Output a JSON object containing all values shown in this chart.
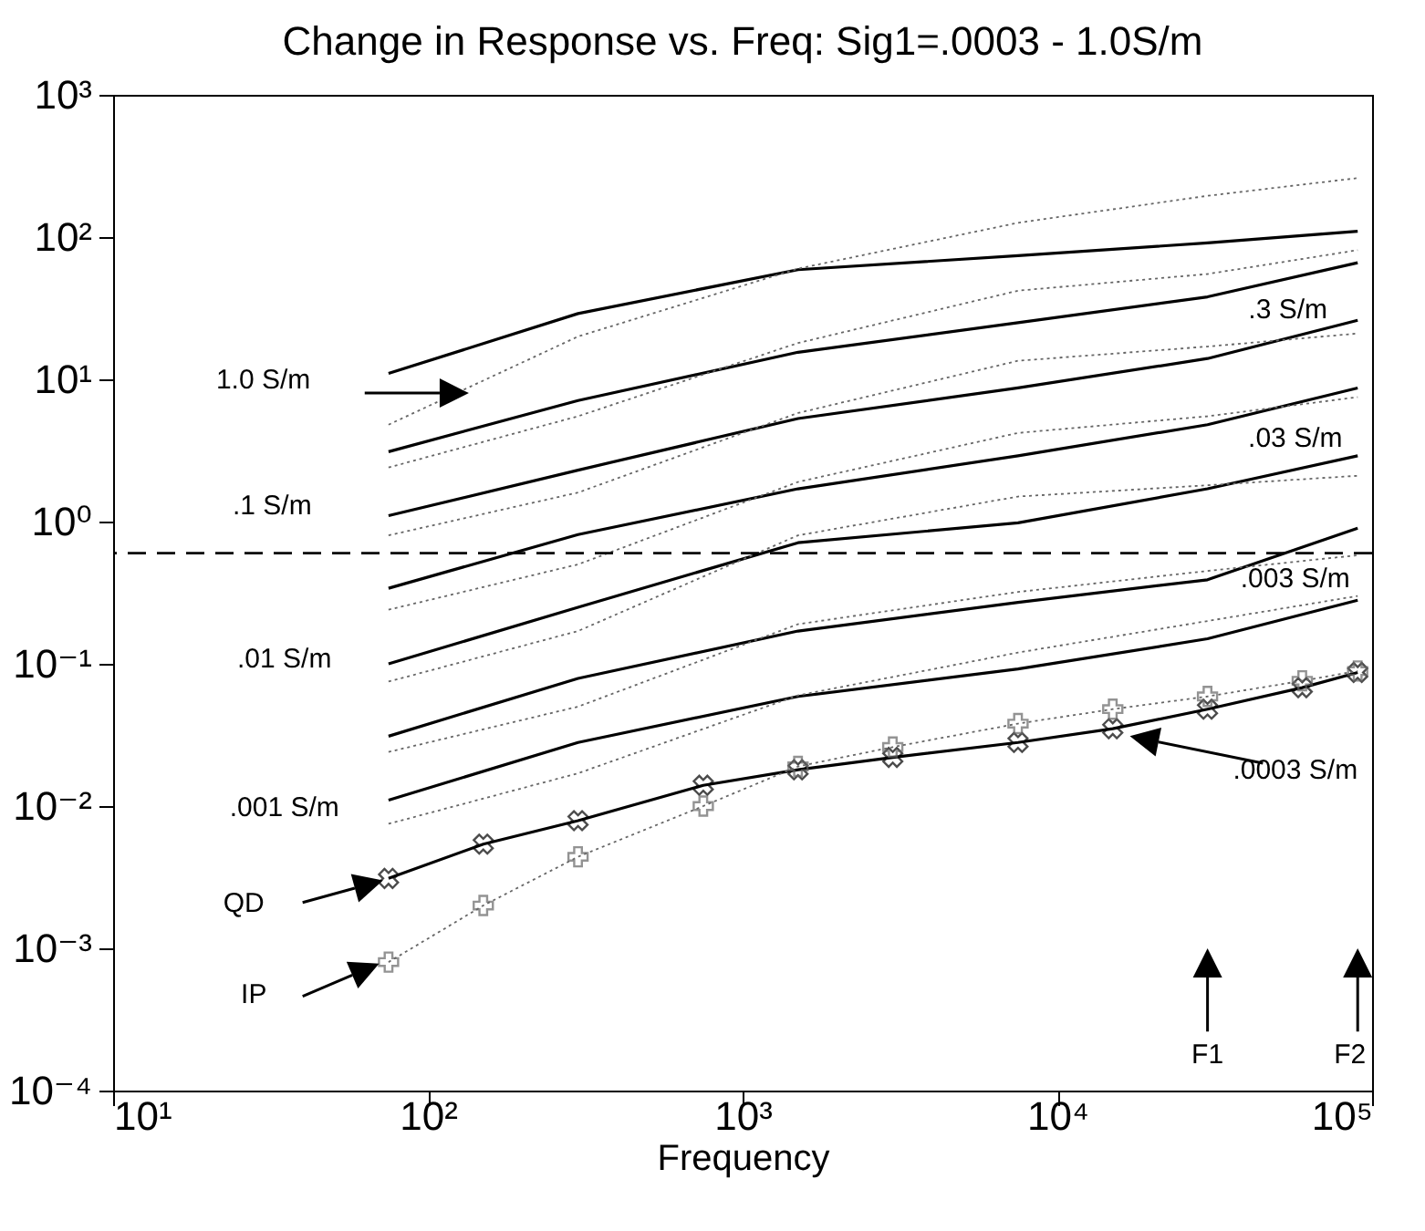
{
  "chart_data": {
    "type": "line",
    "title": "Change in Response vs. Freq: Sig1=.0003 - 1.0S/m",
    "xlabel": "Frequency",
    "log": "xy",
    "grid": false,
    "xlim": [
      10,
      100000
    ],
    "xticks": [
      {
        "value": 10,
        "label": "10¹"
      },
      {
        "value": 100,
        "label": "10²"
      },
      {
        "value": 1000,
        "label": "10³"
      },
      {
        "value": 10000,
        "label": "10⁴"
      },
      {
        "value": 100000,
        "label": "10⁵"
      }
    ],
    "ylim": [
      0.0001,
      1000
    ],
    "yticks": [
      {
        "value": 0.0001,
        "label": "10⁻⁴"
      },
      {
        "value": 0.001,
        "label": "10⁻³"
      },
      {
        "value": 0.01,
        "label": "10⁻²"
      },
      {
        "value": 0.1,
        "label": "10⁻¹"
      },
      {
        "value": 1,
        "label": "10⁰"
      },
      {
        "value": 10,
        "label": "10¹"
      },
      {
        "value": 100,
        "label": "10²"
      },
      {
        "value": 1000,
        "label": "10³"
      }
    ],
    "series": [
      {
        "color": "#000000",
        "line_style": "solid",
        "x": [
          75,
          300,
          1500,
          7500,
          30000,
          90000
        ],
        "values": [
          11,
          29,
          59,
          74,
          91,
          110
        ]
      },
      {
        "color": "#000000",
        "line_style": "solid",
        "x": [
          75,
          300,
          1500,
          7500,
          30000,
          90000
        ],
        "values": [
          3.1,
          7.1,
          15.5,
          25,
          38,
          66
        ]
      },
      {
        "color": "#000000",
        "line_style": "solid",
        "x": [
          75,
          300,
          1500,
          7500,
          30000,
          90000
        ],
        "values": [
          1.1,
          2.3,
          5.3,
          8.7,
          14,
          26
        ]
      },
      {
        "color": "#000000",
        "line_style": "solid",
        "x": [
          75,
          300,
          1500,
          7500,
          30000,
          90000
        ],
        "values": [
          0.34,
          0.81,
          1.7,
          2.9,
          4.8,
          8.7
        ]
      },
      {
        "color": "#000000",
        "line_style": "solid",
        "x": [
          75,
          300,
          1500,
          7500,
          30000,
          90000
        ],
        "values": [
          0.1,
          0.25,
          0.71,
          0.98,
          1.7,
          2.9
        ]
      },
      {
        "color": "#000000",
        "line_style": "solid",
        "x": [
          75,
          300,
          1500,
          7500,
          30000,
          90000
        ],
        "values": [
          0.031,
          0.079,
          0.17,
          0.27,
          0.39,
          0.9
        ]
      },
      {
        "color": "#000000",
        "line_style": "solid",
        "x": [
          75,
          300,
          1500,
          7500,
          30000,
          90000
        ],
        "values": [
          0.011,
          0.028,
          0.059,
          0.092,
          0.15,
          0.28
        ]
      },
      {
        "color": "#000000",
        "line_style": "solid",
        "marker": "cross",
        "x": [
          75,
          150,
          300,
          750,
          1500,
          3000,
          7500,
          15000,
          30000,
          60000,
          90000
        ],
        "values": [
          0.0031,
          0.0054,
          0.0079,
          0.014,
          0.018,
          0.022,
          0.028,
          0.035,
          0.048,
          0.068,
          0.087
        ]
      },
      {
        "color": "#666666",
        "line_style": "dotted",
        "x": [
          75,
          300,
          1500,
          7500,
          30000,
          90000
        ],
        "values": [
          4.8,
          20,
          60,
          126,
          195,
          260
        ]
      },
      {
        "color": "#666666",
        "line_style": "dotted",
        "x": [
          75,
          300,
          1500,
          7500,
          30000,
          90000
        ],
        "values": [
          2.4,
          5.5,
          18,
          42,
          55,
          81
        ]
      },
      {
        "color": "#666666",
        "line_style": "dotted",
        "x": [
          75,
          300,
          1500,
          7500,
          30000,
          90000
        ],
        "values": [
          0.8,
          1.6,
          5.8,
          13.5,
          17,
          21
        ]
      },
      {
        "color": "#666666",
        "line_style": "dotted",
        "x": [
          75,
          300,
          1500,
          7500,
          30000,
          90000
        ],
        "values": [
          0.24,
          0.5,
          1.9,
          4.2,
          5.5,
          7.5
        ]
      },
      {
        "color": "#666666",
        "line_style": "dotted",
        "x": [
          75,
          300,
          1500,
          7500,
          30000,
          90000
        ],
        "values": [
          0.075,
          0.17,
          0.8,
          1.5,
          1.8,
          2.1
        ]
      },
      {
        "color": "#666666",
        "line_style": "dotted",
        "x": [
          75,
          300,
          1500,
          7500,
          30000,
          90000
        ],
        "values": [
          0.024,
          0.05,
          0.19,
          0.32,
          0.45,
          0.58
        ]
      },
      {
        "color": "#666666",
        "line_style": "dotted",
        "x": [
          75,
          300,
          1500,
          7500,
          30000,
          90000
        ],
        "values": [
          0.0075,
          0.017,
          0.06,
          0.12,
          0.2,
          0.3
        ]
      },
      {
        "color": "#666666",
        "line_style": "dotted",
        "marker": "cross",
        "x": [
          75,
          150,
          300,
          750,
          1500,
          3000,
          7500,
          15000,
          30000,
          60000,
          90000
        ],
        "values": [
          0.0008,
          0.002,
          0.0044,
          0.01,
          0.019,
          0.026,
          0.038,
          0.048,
          0.059,
          0.076,
          0.089
        ]
      }
    ],
    "ref_lines": [
      {
        "axis": "y",
        "value": 0.6,
        "color": "#000000",
        "line_style": "dashed"
      }
    ],
    "annotations": [
      "1.0 S/m",
      ".1 S/m",
      ".01 S/m",
      ".001 S/m",
      ".3 S/m",
      ".03 S/m",
      ".003 S/m",
      ".0003 S/m",
      "QD",
      "IP",
      "F1",
      "F2"
    ]
  }
}
